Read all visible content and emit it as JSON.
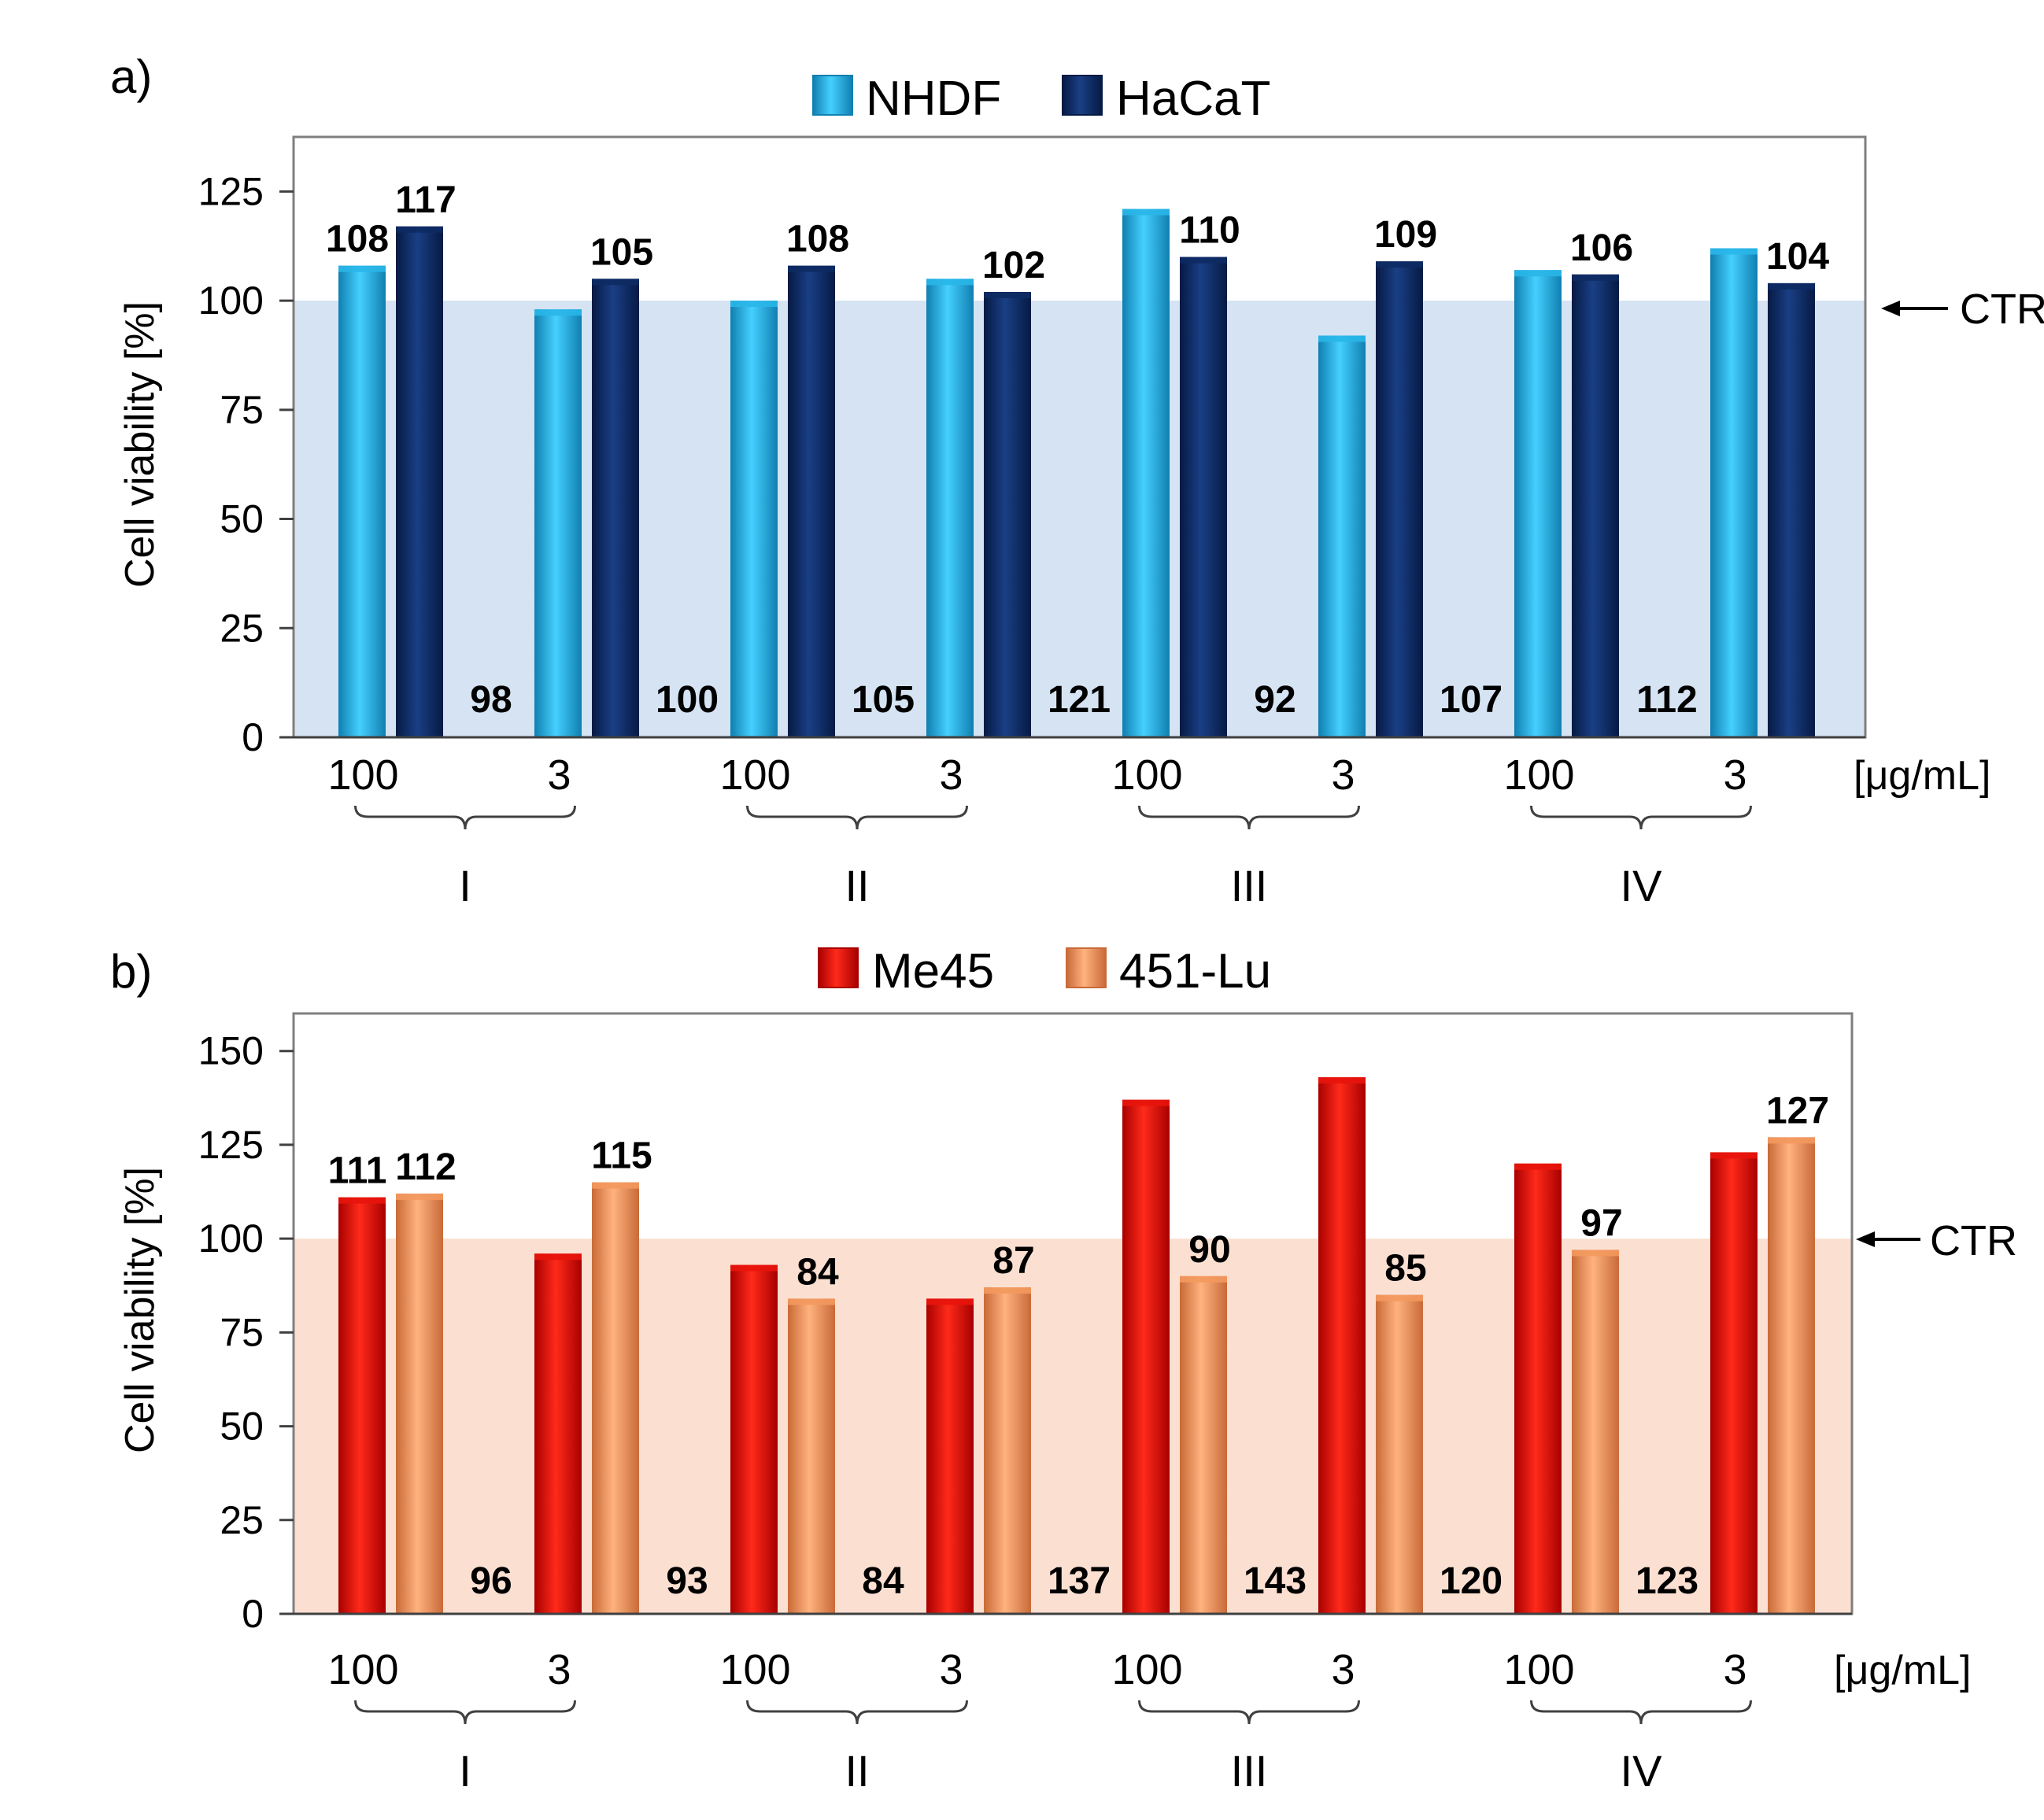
{
  "chart_data": [
    {
      "panel_label": "a)",
      "type": "bar",
      "title": "",
      "legend": [
        "NHDF",
        "HaCaT"
      ],
      "legend_position": "top-center",
      "ylabel": "Cell viability [%]",
      "xlabel": "[μg/mL]",
      "ylim": [
        0,
        137.5
      ],
      "yticks": [
        "0",
        "25",
        "50",
        "75",
        "100",
        "125"
      ],
      "ctr_label": "CTR",
      "ctr_value": 100,
      "groups": [
        {
          "label": "I",
          "concentrations": [
            "100",
            "3"
          ]
        },
        {
          "label": "II",
          "concentrations": [
            "100",
            "3"
          ]
        },
        {
          "label": "III",
          "concentrations": [
            "100",
            "3"
          ]
        },
        {
          "label": "IV",
          "concentrations": [
            "100",
            "3"
          ]
        }
      ],
      "categories": [
        "I 100",
        "I 3",
        "II 100",
        "II 3",
        "III 100",
        "III 3",
        "IV 100",
        "IV 3"
      ],
      "series": [
        {
          "name": "NHDF",
          "values": [
            108,
            98,
            100,
            105,
            121,
            92,
            107,
            112
          ],
          "labels": [
            "108",
            "98",
            "100",
            "105",
            "121",
            "92",
            "107",
            "112"
          ],
          "label_pos": [
            "top",
            "base",
            "base",
            "base",
            "base",
            "base",
            "base",
            "base"
          ]
        },
        {
          "name": "HaCaT",
          "values": [
            117,
            105,
            108,
            102,
            110,
            109,
            106,
            104
          ],
          "labels": [
            "117",
            "105",
            "108",
            "102",
            "110",
            "109",
            "106",
            "104"
          ],
          "label_pos": [
            "top",
            "top",
            "top",
            "top",
            "top",
            "top",
            "top",
            "top"
          ]
        }
      ],
      "colors": {
        "series": [
          "#29b6e8",
          "#0d2a63"
        ],
        "shade": "#d5e3f3"
      }
    },
    {
      "panel_label": "b)",
      "type": "bar",
      "title": "",
      "legend": [
        "Me45",
        "451-Lu"
      ],
      "legend_position": "top-center",
      "ylabel": "Cell viability [%]",
      "xlabel": "[μg/mL]",
      "ylim": [
        0,
        160
      ],
      "yticks": [
        "0",
        "25",
        "50",
        "75",
        "100",
        "125",
        "150"
      ],
      "ctr_label": "CTR",
      "ctr_value": 100,
      "groups": [
        {
          "label": "I",
          "concentrations": [
            "100",
            "3"
          ]
        },
        {
          "label": "II",
          "concentrations": [
            "100",
            "3"
          ]
        },
        {
          "label": "III",
          "concentrations": [
            "100",
            "3"
          ]
        },
        {
          "label": "IV",
          "concentrations": [
            "100",
            "3"
          ]
        }
      ],
      "categories": [
        "I 100",
        "I 3",
        "II 100",
        "II 3",
        "III 100",
        "III 3",
        "IV 100",
        "IV 3"
      ],
      "series": [
        {
          "name": "Me45",
          "values": [
            111,
            96,
            93,
            84,
            137,
            143,
            120,
            123
          ],
          "labels": [
            "111",
            "96",
            "93",
            "84",
            "137",
            "143",
            "120",
            "123"
          ],
          "label_pos": [
            "top",
            "base",
            "base",
            "base",
            "base",
            "base",
            "base",
            "base"
          ]
        },
        {
          "name": "451-Lu",
          "values": [
            112,
            115,
            84,
            87,
            90,
            85,
            97,
            127
          ],
          "labels": [
            "112",
            "115",
            "84",
            "87",
            "90",
            "85",
            "97",
            "127"
          ],
          "label_pos": [
            "top",
            "top",
            "top",
            "top",
            "top",
            "top",
            "top",
            "top"
          ]
        }
      ],
      "colors": {
        "series": [
          "#e8140c",
          "#f3995f"
        ],
        "shade": "#fbe0d2"
      }
    }
  ]
}
